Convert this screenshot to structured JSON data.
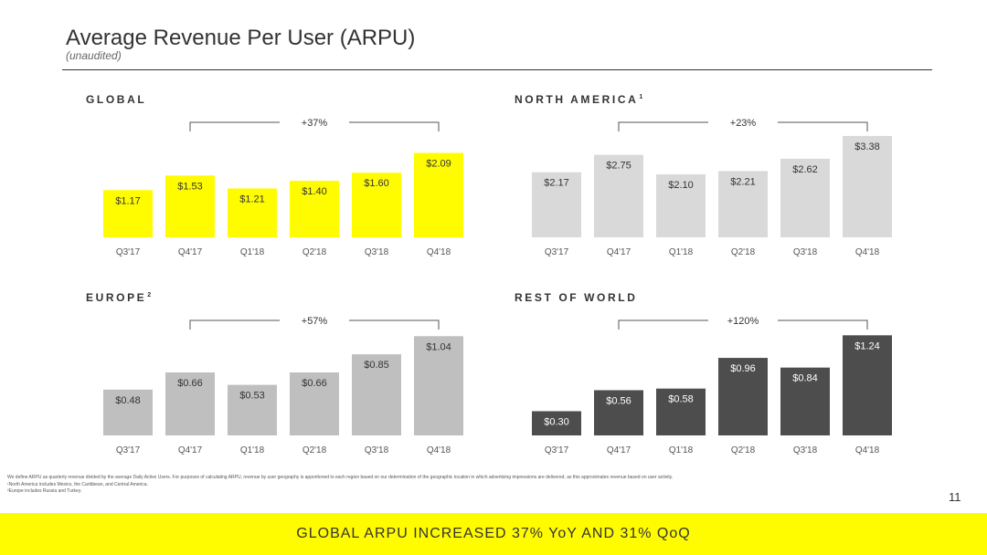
{
  "slide": {
    "title": "Average Revenue Per User (ARPU)",
    "subtitle": "(unaudited)",
    "page_number": "11",
    "banner": "GLOBAL ARPU INCREASED 37% YoY AND 31% QoQ",
    "footnotes": [
      "We define ARPU as quarterly revenue divided by the average Daily Active Users. For purposes of calculating ARPU, revenue by user geography is apportioned to each region based on our determination of the geographic location in which advertising impressions are delivered, as this approximates revenue based on user activity.",
      "¹North America includes Mexico, the Caribbean, and Central America.",
      "²Europe includes Russia and Turkey."
    ]
  },
  "colors": {
    "global_bar": "#fffc00",
    "north_america_bar": "#d9d9d9",
    "europe_bar": "#bfbfbf",
    "rest_of_world_bar": "#4d4d4d",
    "label_dark": "#333333",
    "label_light": "#ffffff"
  },
  "chart_data": [
    {
      "type": "bar",
      "id": "global",
      "title": "GLOBAL",
      "footnote_marker": "",
      "categories": [
        "Q3'17",
        "Q4'17",
        "Q1'18",
        "Q2'18",
        "Q3'18",
        "Q4'18"
      ],
      "values": [
        1.17,
        1.53,
        1.21,
        1.4,
        1.6,
        2.09
      ],
      "value_labels": [
        "$1.17",
        "$1.53",
        "$1.21",
        "$1.40",
        "$1.60",
        "$2.09"
      ],
      "growth_label": "+37%",
      "growth_from": "Q4'17",
      "growth_to": "Q4'18",
      "ylim": [
        0,
        2.6
      ],
      "bar_color_key": "global_bar",
      "label_color_key": "label_dark"
    },
    {
      "type": "bar",
      "id": "north_america",
      "title": "NORTH AMERICA",
      "footnote_marker": "1",
      "categories": [
        "Q3'17",
        "Q4'17",
        "Q1'18",
        "Q2'18",
        "Q3'18",
        "Q4'18"
      ],
      "values": [
        2.17,
        2.75,
        2.1,
        2.21,
        2.62,
        3.38
      ],
      "value_labels": [
        "$2.17",
        "$2.75",
        "$2.10",
        "$2.21",
        "$2.62",
        "$3.38"
      ],
      "growth_label": "+23%",
      "growth_from": "Q4'17",
      "growth_to": "Q4'18",
      "ylim": [
        0,
        3.5
      ],
      "bar_color_key": "north_america_bar",
      "label_color_key": "label_dark"
    },
    {
      "type": "bar",
      "id": "europe",
      "title": "EUROPE",
      "footnote_marker": "2",
      "categories": [
        "Q3'17",
        "Q4'17",
        "Q1'18",
        "Q2'18",
        "Q3'18",
        "Q4'18"
      ],
      "values": [
        0.48,
        0.66,
        0.53,
        0.66,
        0.85,
        1.04
      ],
      "value_labels": [
        "$0.48",
        "$0.66",
        "$0.53",
        "$0.66",
        "$0.85",
        "$1.04"
      ],
      "growth_label": "+57%",
      "growth_from": "Q4'17",
      "growth_to": "Q4'18",
      "ylim": [
        0,
        1.1
      ],
      "bar_color_key": "europe_bar",
      "label_color_key": "label_dark"
    },
    {
      "type": "bar",
      "id": "rest_of_world",
      "title": "REST OF WORLD",
      "footnote_marker": "",
      "categories": [
        "Q3'17",
        "Q4'17",
        "Q1'18",
        "Q2'18",
        "Q3'18",
        "Q4'18"
      ],
      "values": [
        0.3,
        0.56,
        0.58,
        0.96,
        0.84,
        1.24
      ],
      "value_labels": [
        "$0.30",
        "$0.56",
        "$0.58",
        "$0.96",
        "$0.84",
        "$1.24"
      ],
      "growth_label": "+120%",
      "growth_from": "Q4'17",
      "growth_to": "Q4'18",
      "ylim": [
        0,
        1.3
      ],
      "bar_color_key": "rest_of_world_bar",
      "label_color_key": "label_light"
    }
  ]
}
